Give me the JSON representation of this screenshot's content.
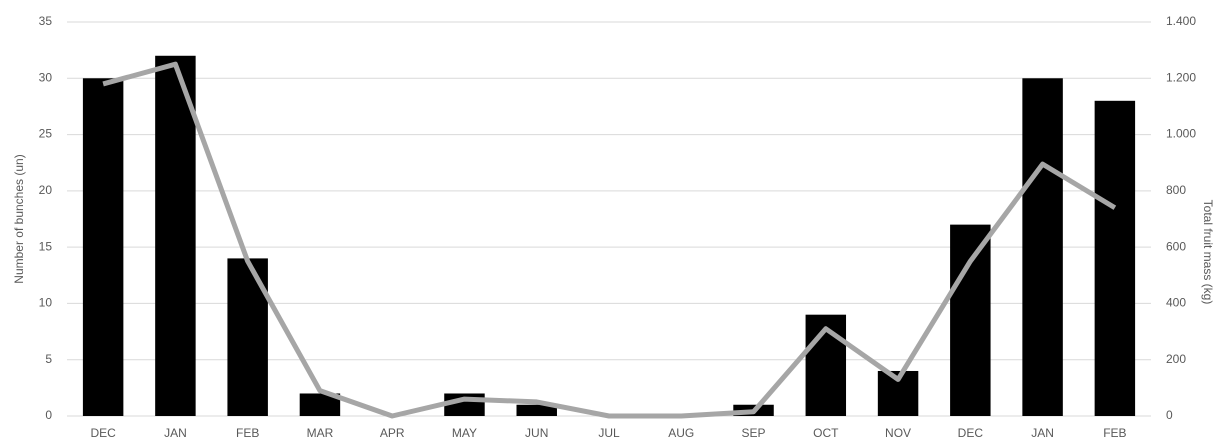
{
  "chart_data": {
    "type": "bar",
    "y_label": "Number of bunches (un)",
    "y2_label": "Total fruit mass (kg)",
    "categories": [
      "DEC",
      "JAN",
      "FEB",
      "MAR",
      "APR",
      "MAY",
      "JUN",
      "JUL",
      "AUG",
      "SEP",
      "OCT",
      "NOV",
      "DEC",
      "JAN",
      "FEB"
    ],
    "series": [
      {
        "type": "bar",
        "color": "#000000",
        "values": [
          30,
          32,
          14,
          2,
          0,
          2,
          1,
          0,
          0,
          1,
          9,
          4,
          17,
          30,
          28
        ]
      },
      {
        "type": "line",
        "axis": "y2",
        "color": "#a6a6a6",
        "values": [
          1180,
          1250,
          550,
          90,
          0,
          60,
          50,
          0,
          0,
          15,
          310,
          130,
          550,
          895,
          740
        ]
      }
    ],
    "ylim": [
      0,
      35
    ],
    "yticks": [
      0,
      5,
      10,
      15,
      20,
      25,
      30,
      35
    ],
    "y2lim": [
      0,
      1400
    ],
    "y2ticks": [
      0,
      200,
      400,
      600,
      800,
      {
        "value": 1000,
        "label": "1.000"
      },
      {
        "value": 1200,
        "label": "1.200"
      },
      {
        "value": 1400,
        "label": "1.400"
      }
    ],
    "grid": true
  }
}
